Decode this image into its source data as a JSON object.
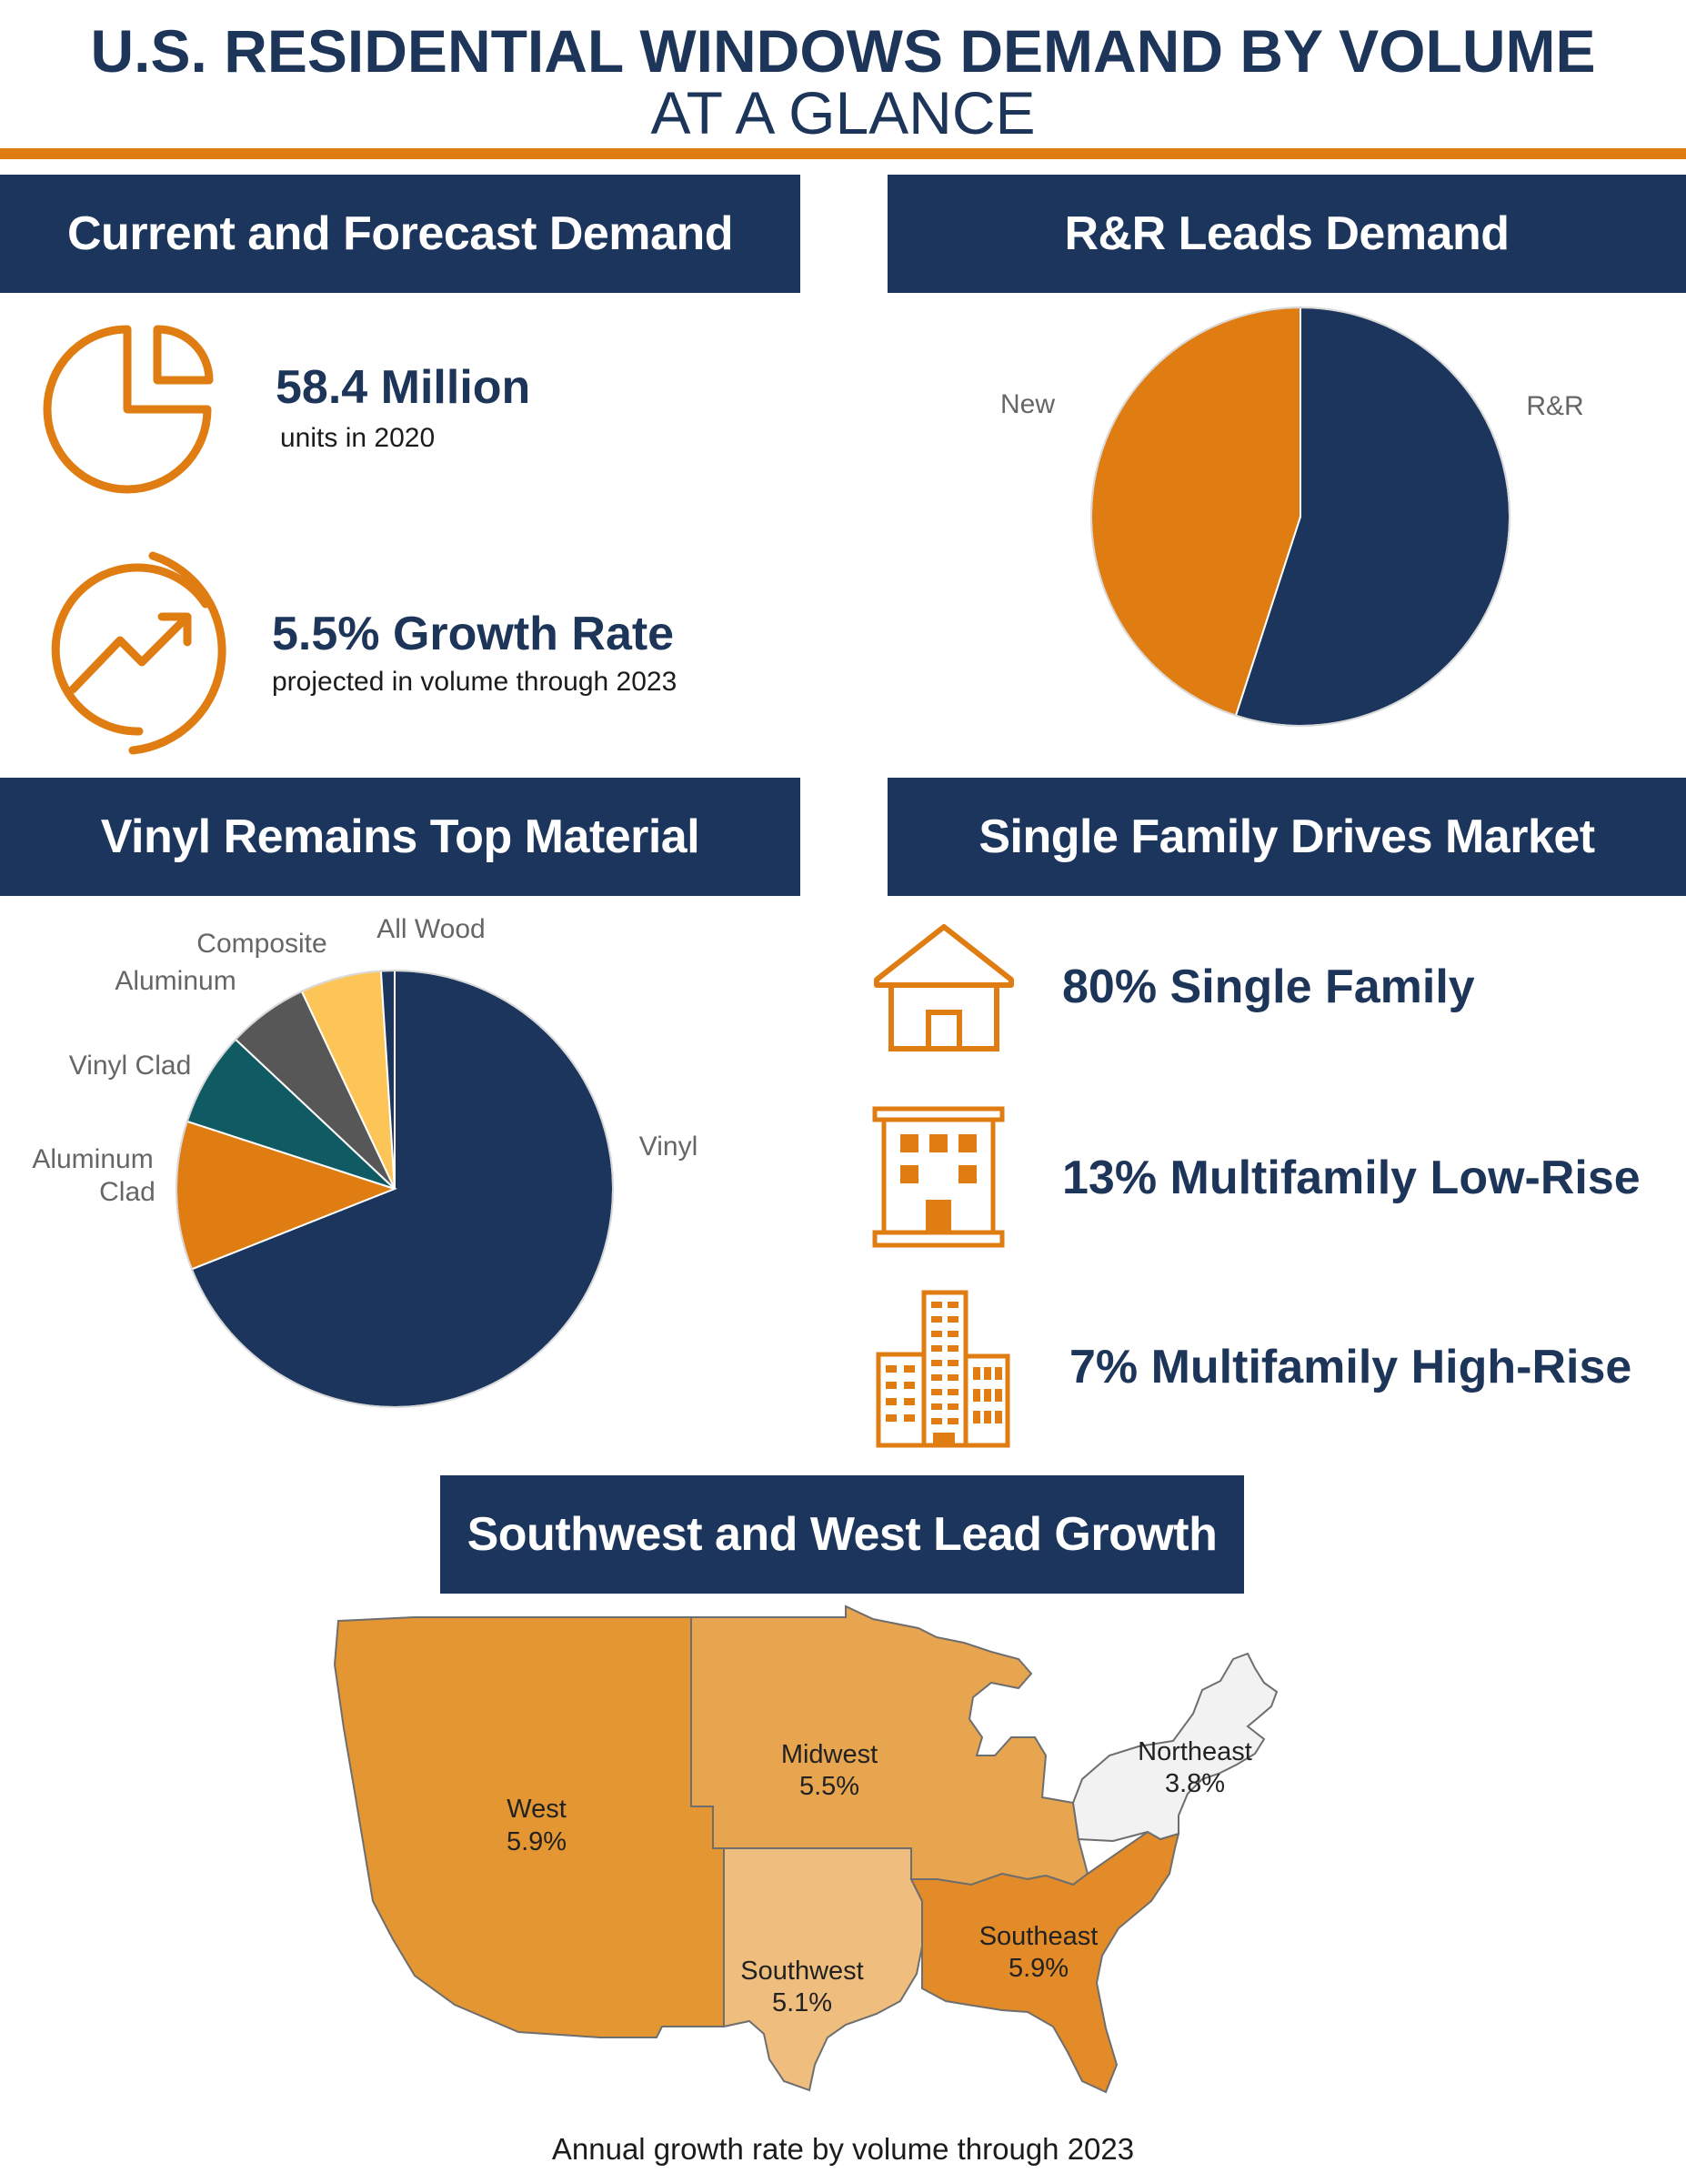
{
  "header": {
    "title": "U.S. RESIDENTIAL WINDOWS DEMAND BY VOLUME",
    "subtitle": "AT A GLANCE"
  },
  "sections": {
    "current_forecast": {
      "heading": "Current and Forecast Demand",
      "stat1_value": "58.4 Million",
      "stat1_label": "units in 2020",
      "stat2_value": "5.5% Growth Rate",
      "stat2_label": "projected in volume through 2023",
      "icons": [
        "pie-chart-icon",
        "growth-arrow-icon"
      ]
    },
    "rr_leads": {
      "heading": "R&R Leads Demand"
    },
    "vinyl": {
      "heading": "Vinyl Remains Top Material"
    },
    "single_family": {
      "heading": "Single Family Drives Market",
      "items": [
        {
          "text": "80% Single Family",
          "icon": "house-icon"
        },
        {
          "text": "13% Multifamily Low-Rise",
          "icon": "low-rise-building-icon"
        },
        {
          "text": "7% Multifamily High-Rise",
          "icon": "high-rise-buildings-icon"
        }
      ]
    },
    "regions": {
      "heading": "Southwest and West Lead Growth",
      "caption": "Annual growth rate by volume through 2023"
    }
  },
  "colors": {
    "navy": "#1c355c",
    "orange": "#df7d12",
    "teal": "#105a63",
    "gray": "#575757",
    "yellow": "#fdc557",
    "west": "#e39632",
    "midwest": "#e8a550",
    "southwest": "#efbe7e",
    "southeast": "#e38b29",
    "northeast": "#f2f2f2"
  },
  "chart_data": [
    {
      "type": "pie",
      "slices": [
        {
          "label": "R&R",
          "value": 55,
          "color": "#1c355c"
        },
        {
          "label": "New",
          "value": 45,
          "color": "#df7d12"
        }
      ]
    },
    {
      "type": "pie",
      "slices": [
        {
          "label": "Vinyl",
          "value": 69,
          "color": "#1c355c"
        },
        {
          "label": "Aluminum Clad",
          "value": 11,
          "color": "#df7d12"
        },
        {
          "label": "Vinyl Clad",
          "value": 7,
          "color": "#105a63"
        },
        {
          "label": "Aluminum",
          "value": 6,
          "color": "#575757"
        },
        {
          "label": "Composite",
          "value": 6,
          "color": "#fdc557"
        },
        {
          "label": "All Wood",
          "value": 1,
          "color": "#1c355c"
        }
      ]
    },
    {
      "type": "map",
      "regions": [
        {
          "name": "West",
          "value": "5.9%"
        },
        {
          "name": "Midwest",
          "value": "5.5%"
        },
        {
          "name": "Northeast",
          "value": "3.8%"
        },
        {
          "name": "Southwest",
          "value": "5.1%"
        },
        {
          "name": "Southeast",
          "value": "5.9%"
        }
      ]
    }
  ]
}
